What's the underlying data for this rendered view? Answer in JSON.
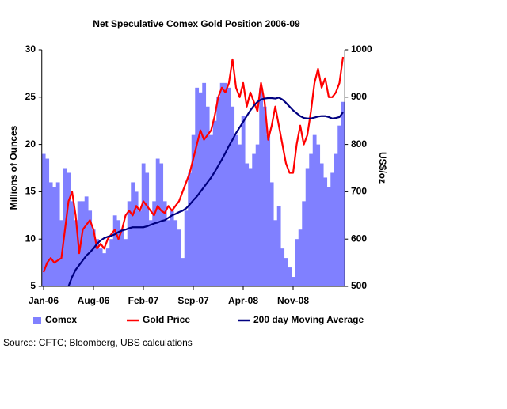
{
  "chart_data": {
    "type": "bar-line",
    "title": "Net Speculative Comex Gold Position 2006-09",
    "ylabel": "Millions of Ounces",
    "y2label": "US$/oz",
    "source": "Source: CFTC; Bloomberg, UBS calculations",
    "categories": [
      "Jan-06",
      null,
      null,
      null,
      null,
      null,
      null,
      null,
      null,
      null,
      null,
      null,
      null,
      null,
      "Aug-06",
      null,
      null,
      null,
      null,
      null,
      null,
      null,
      null,
      null,
      null,
      null,
      null,
      null,
      "Feb-07",
      null,
      null,
      null,
      null,
      null,
      null,
      null,
      null,
      null,
      null,
      null,
      null,
      null,
      "Sep-07",
      null,
      null,
      null,
      null,
      null,
      null,
      null,
      null,
      null,
      null,
      null,
      null,
      null,
      "Apr-08",
      null,
      null,
      null,
      null,
      null,
      null,
      null,
      null,
      null,
      null,
      null,
      null,
      null,
      "Nov-08",
      null,
      null,
      null,
      null,
      null,
      null,
      null,
      null,
      null,
      null,
      null,
      null,
      null,
      null
    ],
    "ylim": [
      5,
      30
    ],
    "yticks": [
      5,
      10,
      15,
      20,
      25,
      30
    ],
    "y2lim": [
      500,
      1000
    ],
    "y2ticks": [
      500,
      600,
      700,
      800,
      900,
      1000
    ],
    "series": [
      {
        "name": "Comex",
        "kind": "bar",
        "color": "#8080ff",
        "values": [
          19,
          18.5,
          16,
          15.5,
          16,
          12,
          17.5,
          17,
          14,
          12,
          14,
          14,
          14.5,
          13,
          11,
          10,
          9,
          8.5,
          9,
          10,
          12.5,
          12,
          11,
          10,
          14,
          16,
          15,
          13,
          18,
          17,
          12,
          14,
          18.5,
          18,
          14,
          12,
          13,
          12,
          11,
          8,
          13,
          17,
          21,
          26,
          25.5,
          26.5,
          24,
          21,
          22.5,
          25,
          26.5,
          26.5,
          26,
          24,
          21,
          20,
          23,
          18,
          17.5,
          19,
          20,
          26,
          24,
          21,
          16,
          12,
          13.5,
          9,
          8,
          7,
          6,
          10,
          11,
          14,
          17.5,
          19,
          21,
          20,
          18,
          16.5,
          15.5,
          17,
          19,
          22,
          24.5
        ]
      },
      {
        "name": "Gold Price",
        "kind": "line",
        "axis": "y2",
        "color": "#ff0000",
        "values": [
          530,
          550,
          560,
          550,
          555,
          560,
          620,
          680,
          700,
          650,
          570,
          620,
          630,
          640,
          620,
          580,
          590,
          580,
          600,
          610,
          620,
          600,
          620,
          650,
          660,
          650,
          670,
          660,
          680,
          670,
          660,
          650,
          670,
          660,
          655,
          670,
          660,
          670,
          680,
          700,
          720,
          740,
          770,
          800,
          830,
          810,
          820,
          830,
          860,
          900,
          920,
          910,
          930,
          980,
          920,
          900,
          930,
          880,
          910,
          890,
          870,
          930,
          890,
          810,
          840,
          880,
          840,
          800,
          760,
          740,
          740,
          800,
          840,
          800,
          820,
          870,
          930,
          960,
          920,
          940,
          900,
          900,
          910,
          930,
          985
        ]
      },
      {
        "name": "200 day Moving Average",
        "kind": "line",
        "axis": "y2",
        "color": "#000080",
        "values": [
          null,
          null,
          null,
          null,
          null,
          null,
          null,
          500,
          520,
          535,
          545,
          555,
          565,
          572,
          580,
          590,
          597,
          602,
          605,
          607,
          610,
          615,
          618,
          620,
          623,
          625,
          625,
          625,
          625,
          627,
          630,
          633,
          635,
          638,
          640,
          645,
          650,
          653,
          657,
          660,
          665,
          673,
          682,
          690,
          700,
          710,
          720,
          730,
          742,
          755,
          768,
          782,
          797,
          810,
          824,
          836,
          848,
          860,
          872,
          882,
          890,
          895,
          897,
          898,
          898,
          897,
          899,
          895,
          888,
          880,
          872,
          866,
          860,
          856,
          855,
          855,
          857,
          859,
          860,
          860,
          858,
          855,
          856,
          858,
          868
        ]
      }
    ]
  }
}
